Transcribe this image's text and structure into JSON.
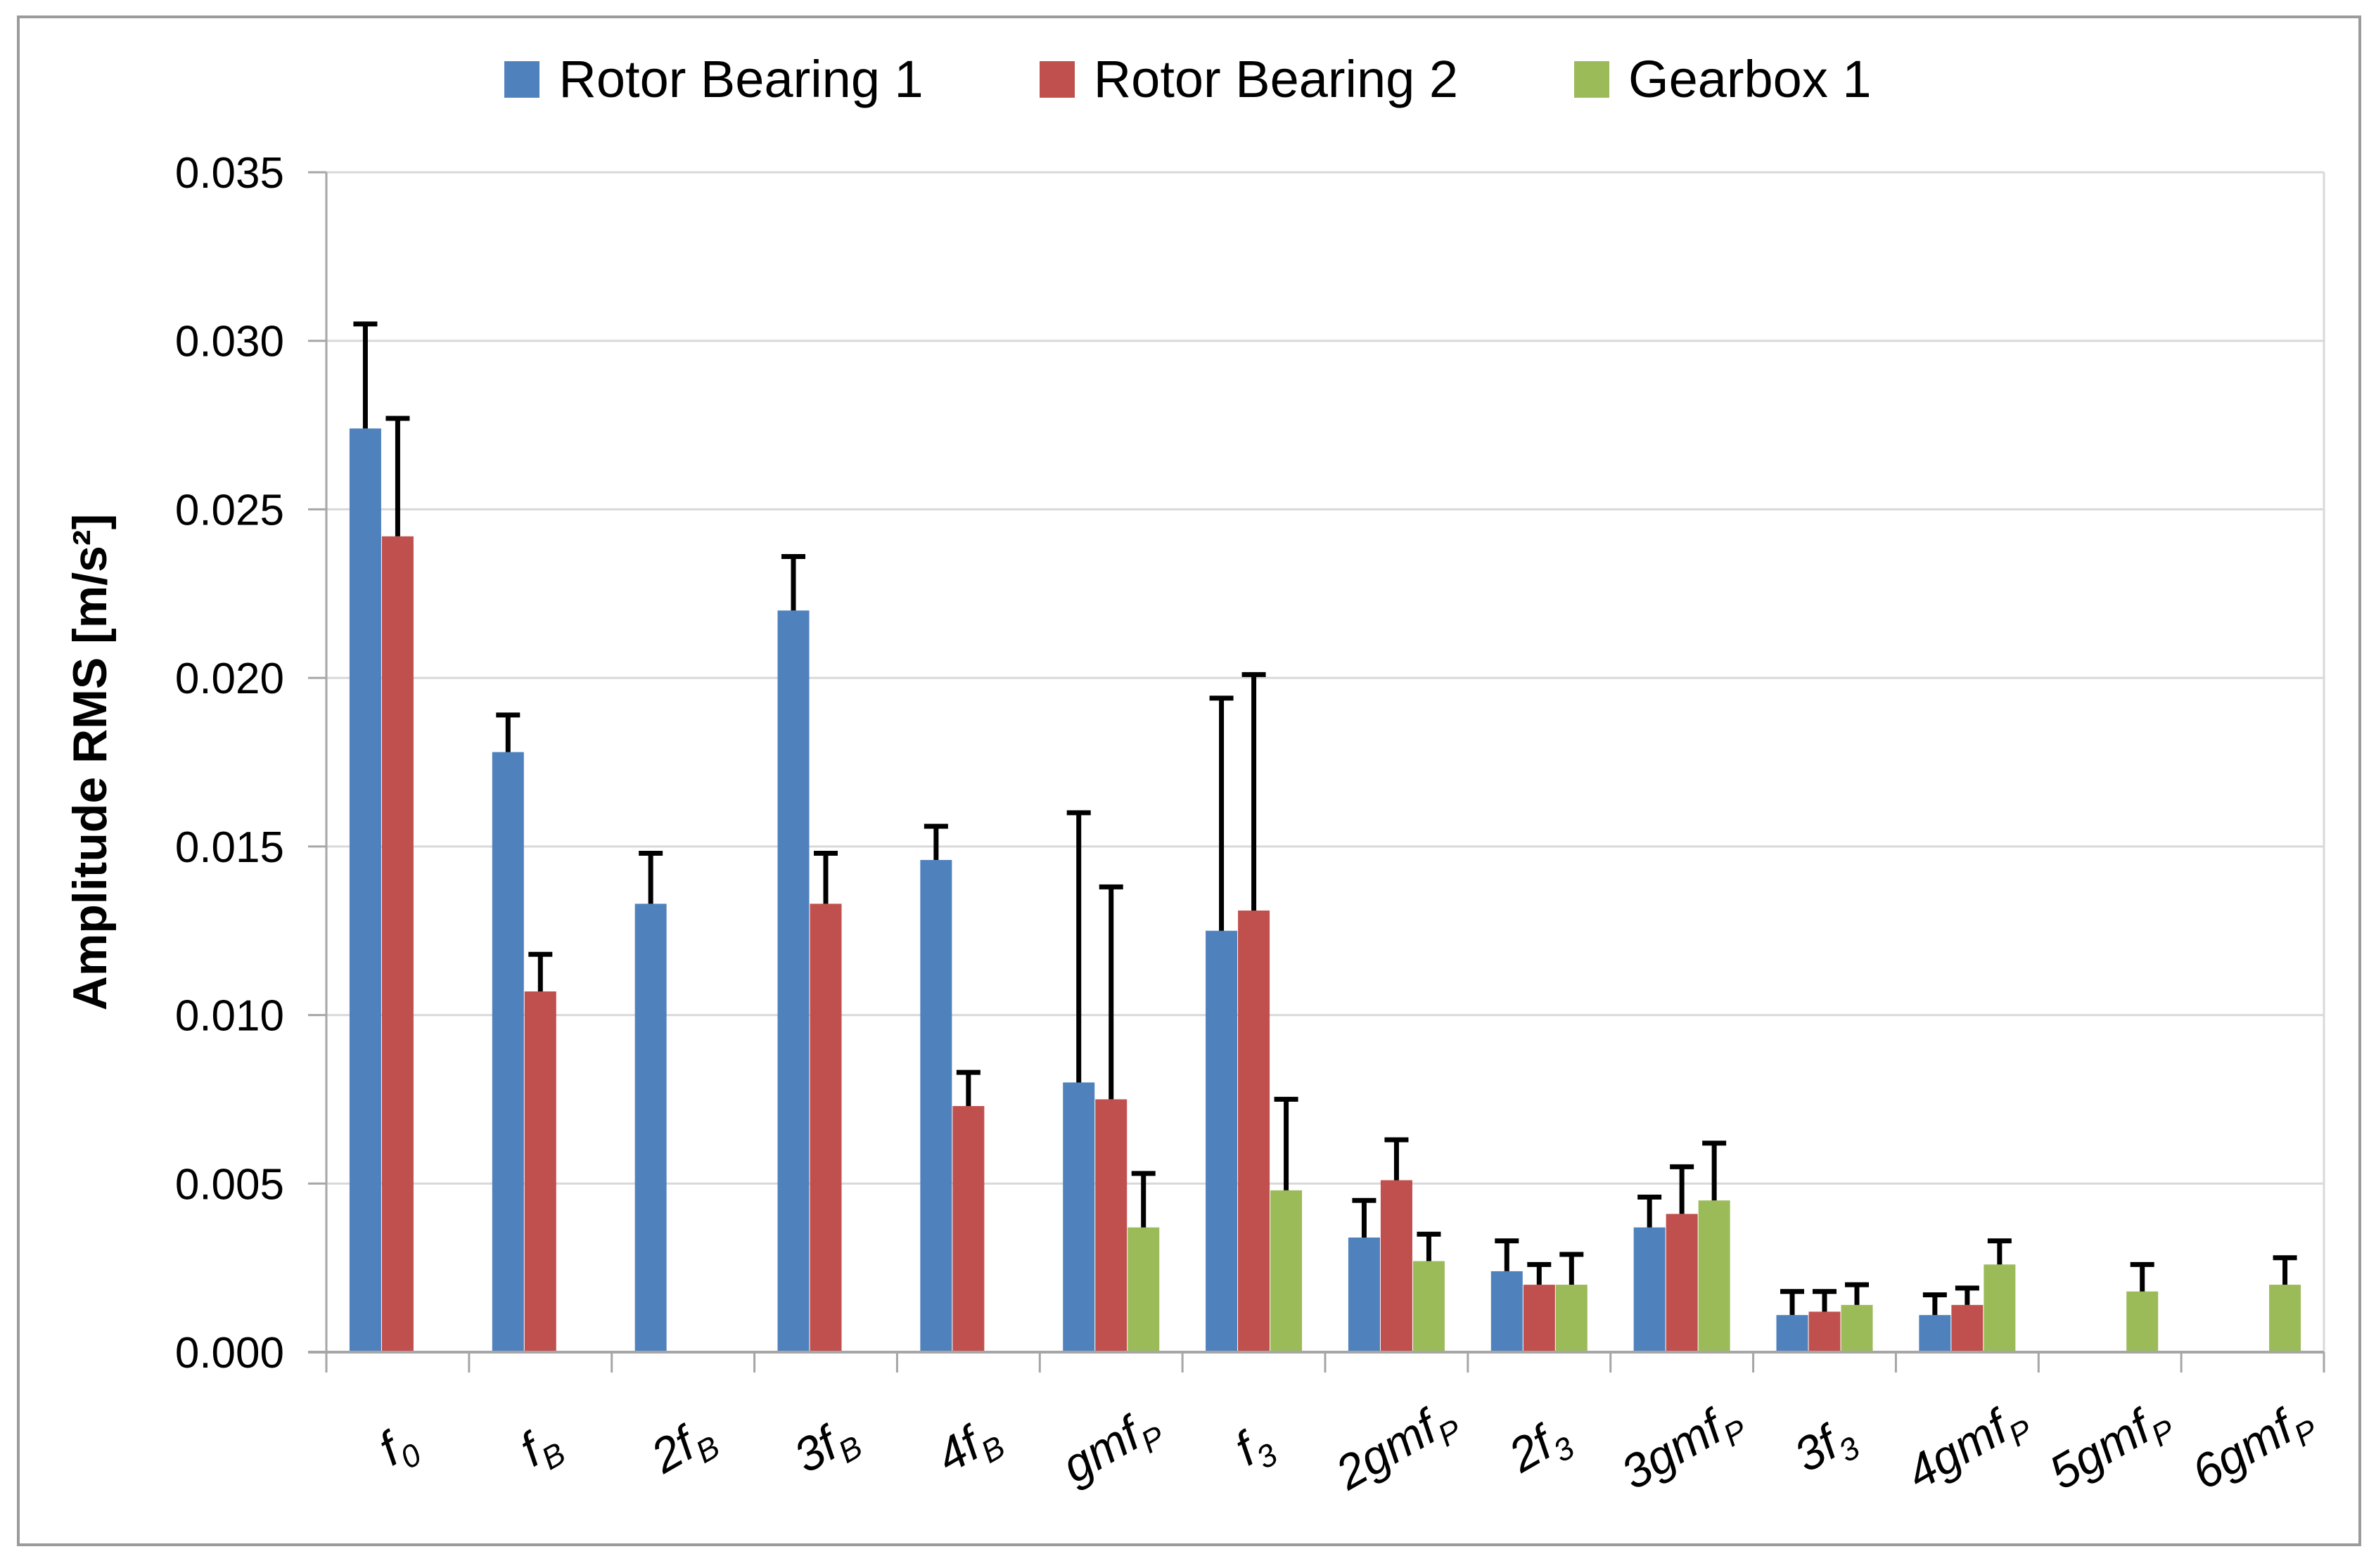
{
  "chart_data": {
    "type": "bar",
    "title": "",
    "xlabel": "",
    "ylabel": "Amplitude RMS [m/s²]",
    "ylim": [
      0,
      0.035
    ],
    "ytick_step": 0.005,
    "y_tick_labels": [
      "0.000",
      "0.005",
      "0.010",
      "0.015",
      "0.020",
      "0.025",
      "0.030",
      "0.035"
    ],
    "grid": true,
    "gridline_color": "#D9D9D9",
    "axis_color": "#A6A6A6",
    "error_bar_color": "#000000",
    "error_bars": "plus-direction-only",
    "legend_position": "top-center",
    "frame_color": "#9B9B9B",
    "background": "#FFFFFF",
    "categories": [
      {
        "text": "f",
        "sub": "0"
      },
      {
        "text": "f",
        "sub": "B"
      },
      {
        "text": "2f",
        "sub": "B"
      },
      {
        "text": "3f",
        "sub": "B"
      },
      {
        "text": "4f",
        "sub": "B"
      },
      {
        "text": "gmf",
        "sub": "P"
      },
      {
        "text": "f",
        "sub": "3"
      },
      {
        "text": "2gmf",
        "sub": "P"
      },
      {
        "text": "2f",
        "sub": "3"
      },
      {
        "text": "3gmf",
        "sub": "P"
      },
      {
        "text": "3f",
        "sub": "3"
      },
      {
        "text": "4gmf",
        "sub": "P"
      },
      {
        "text": "5gmf",
        "sub": "P"
      },
      {
        "text": "6gmf",
        "sub": "P"
      }
    ],
    "series": [
      {
        "name": "Rotor Bearing 1",
        "color": "#4F81BD",
        "values": [
          0.0274,
          0.0178,
          0.0133,
          0.022,
          0.0146,
          0.008,
          0.0125,
          0.0034,
          0.0024,
          0.0037,
          0.0011,
          0.0011,
          null,
          null
        ],
        "errors": [
          0.0031,
          0.0011,
          0.0015,
          0.0016,
          0.001,
          0.008,
          0.0069,
          0.0011,
          0.0009,
          0.0009,
          0.0007,
          0.0006,
          null,
          null
        ]
      },
      {
        "name": "Rotor Bearing 2",
        "color": "#C0504D",
        "values": [
          0.0242,
          0.0107,
          null,
          0.0133,
          0.0073,
          0.0075,
          0.0131,
          0.0051,
          0.002,
          0.0041,
          0.0012,
          0.0014,
          null,
          null
        ],
        "errors": [
          0.0035,
          0.0011,
          null,
          0.0015,
          0.001,
          0.0063,
          0.007,
          0.0012,
          0.0006,
          0.0014,
          0.0006,
          0.0005,
          null,
          null
        ]
      },
      {
        "name": "Gearbox 1",
        "color": "#9BBB59",
        "values": [
          null,
          null,
          null,
          null,
          null,
          0.0037,
          0.0048,
          0.0027,
          0.002,
          0.0045,
          0.0014,
          0.0026,
          0.0018,
          0.002
        ],
        "errors": [
          null,
          null,
          null,
          null,
          null,
          0.0016,
          0.0027,
          0.0008,
          0.0009,
          0.0017,
          0.0006,
          0.0007,
          0.0008,
          0.0008
        ]
      }
    ]
  }
}
